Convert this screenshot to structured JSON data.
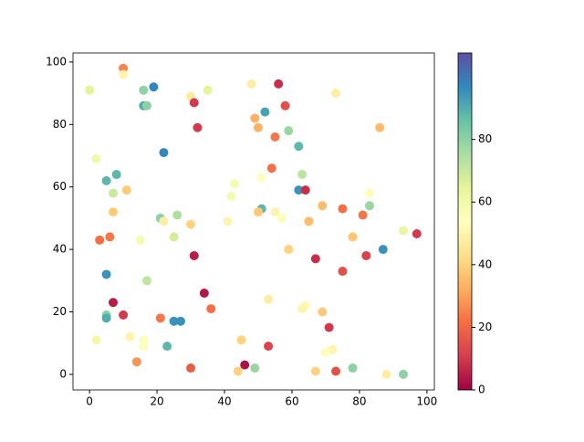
{
  "chart_data": {
    "type": "scatter",
    "x": [
      10,
      10,
      0,
      16,
      19,
      16,
      17,
      30,
      31,
      35,
      48,
      56,
      58,
      73,
      52,
      49,
      50,
      32,
      86,
      59,
      55,
      62,
      22,
      2,
      54,
      8,
      63,
      5,
      43,
      51,
      62,
      64,
      7,
      11,
      42,
      83,
      83,
      69,
      75,
      7,
      51,
      50,
      55,
      26,
      81,
      21,
      22,
      57,
      41,
      65,
      30,
      93,
      97,
      3,
      6,
      15,
      25,
      78,
      59,
      87,
      31,
      82,
      67,
      75,
      5,
      17,
      34,
      53,
      7,
      64,
      63,
      36,
      69,
      5,
      5,
      10,
      21,
      25,
      27,
      71,
      12,
      2,
      16,
      45,
      16,
      23,
      53,
      72,
      70,
      14,
      46,
      30,
      49,
      78,
      44,
      67,
      73,
      88,
      93
    ],
    "values": [
      98,
      96,
      91,
      91,
      92,
      86,
      86,
      89,
      87,
      91,
      93,
      93,
      86,
      90,
      84,
      82,
      79,
      79,
      79,
      78,
      76,
      73,
      71,
      69,
      66,
      64,
      64,
      62,
      61,
      63,
      59,
      59,
      58,
      59,
      57,
      58,
      54,
      54,
      53,
      52,
      53,
      52,
      52,
      51,
      51,
      50,
      49,
      50,
      49,
      49,
      48,
      46,
      45,
      43,
      44,
      43,
      44,
      44,
      40,
      40,
      38,
      38,
      37,
      33,
      32,
      30,
      26,
      24,
      23,
      22,
      21,
      21,
      20,
      19,
      18,
      19,
      18,
      17,
      17,
      15,
      12,
      11,
      11,
      11,
      9,
      9,
      9,
      8,
      7,
      4,
      3,
      2,
      2,
      2,
      1,
      1,
      1,
      0,
      0
    ],
    "color_values": [
      25,
      50,
      65,
      80,
      97,
      90,
      80,
      47,
      10,
      65,
      48,
      8,
      15,
      48,
      92,
      33,
      33,
      10,
      35,
      78,
      23,
      88,
      97,
      60,
      22,
      88,
      72,
      88,
      58,
      55,
      95,
      8,
      70,
      38,
      58,
      55,
      78,
      35,
      22,
      38,
      88,
      38,
      50,
      75,
      23,
      80,
      48,
      55,
      50,
      35,
      40,
      63,
      10,
      22,
      23,
      58,
      68,
      37,
      40,
      95,
      5,
      12,
      8,
      15,
      95,
      72,
      4,
      48,
      5,
      52,
      50,
      22,
      38,
      80,
      90,
      10,
      23,
      95,
      95,
      10,
      50,
      60,
      55,
      40,
      55,
      88,
      12,
      50,
      55,
      28,
      3,
      18,
      78,
      80,
      40,
      40,
      15,
      48,
      80
    ],
    "colormap": [
      "#9e0142",
      "#d53e4f",
      "#f46d43",
      "#fdae61",
      "#fee08b",
      "#ffffbf",
      "#e6f598",
      "#abdda4",
      "#66c2a5",
      "#3288bd",
      "#5e4fa2"
    ],
    "xlim": [
      -4.9,
      102.2
    ],
    "xticks": [
      0,
      20,
      40,
      60,
      80,
      100
    ],
    "ylim": [
      -5,
      102.9
    ],
    "yticks": [
      0,
      20,
      40,
      60,
      80,
      100
    ],
    "clim": [
      0,
      107.6
    ],
    "cticks": [
      0,
      20,
      40,
      60,
      80
    ]
  }
}
